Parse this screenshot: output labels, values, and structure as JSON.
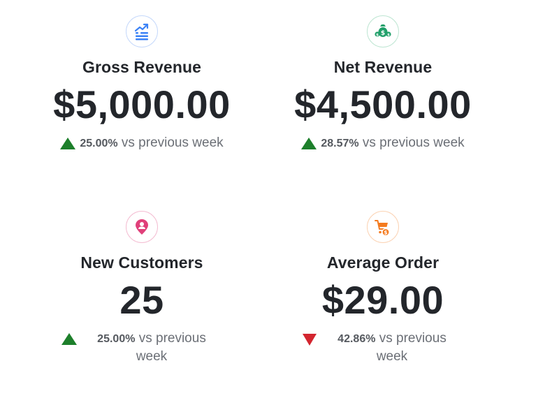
{
  "metrics": [
    {
      "icon": "revenue-chart-icon",
      "accent": "#3b82f6",
      "title": "Gross Revenue",
      "value": "$5,000.00",
      "direction": "up",
      "change": "25.00%",
      "comparison": "vs previous week"
    },
    {
      "icon": "money-bag-icon",
      "accent": "#22a06b",
      "title": "Net Revenue",
      "value": "$4,500.00",
      "direction": "up",
      "change": "28.57%",
      "comparison": "vs previous week"
    },
    {
      "icon": "person-pin-icon",
      "accent": "#e0407a",
      "title": "New Customers",
      "value": "25",
      "direction": "up",
      "change": "25.00%",
      "comparison": "vs previous week"
    },
    {
      "icon": "cart-dollar-icon",
      "accent": "#f47b20",
      "title": "Average Order",
      "value": "$29.00",
      "direction": "down",
      "change": "42.86%",
      "comparison": "vs previous week"
    }
  ],
  "colors": {
    "up": "#1d7f2b",
    "down": "#d3252f"
  }
}
